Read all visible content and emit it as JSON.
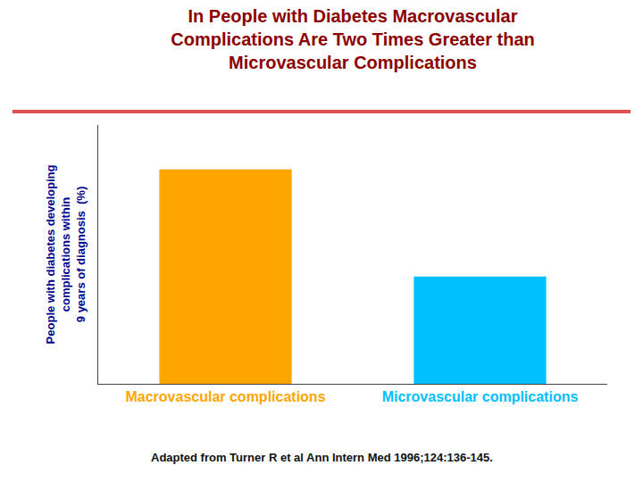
{
  "chart_data": {
    "type": "bar",
    "title": "In People with Diabetes Macrovascular\nComplications Are Two Times Greater than\nMicrovascular Complications",
    "ylabel": "People with diabetes developing\ncomplications within\n9 years of diagnosis  (%)",
    "categories": [
      "Macrovascular complications",
      "Microvascular complications"
    ],
    "values": [
      58,
      29
    ],
    "colors": [
      "#FFA500",
      "#00BFFF"
    ],
    "ylim": [
      0,
      70
    ],
    "grid": false,
    "tick_labels": "x",
    "annotations": [
      "Adapted from Turner R et al Ann Intern Med 1996;124:136-145."
    ]
  }
}
